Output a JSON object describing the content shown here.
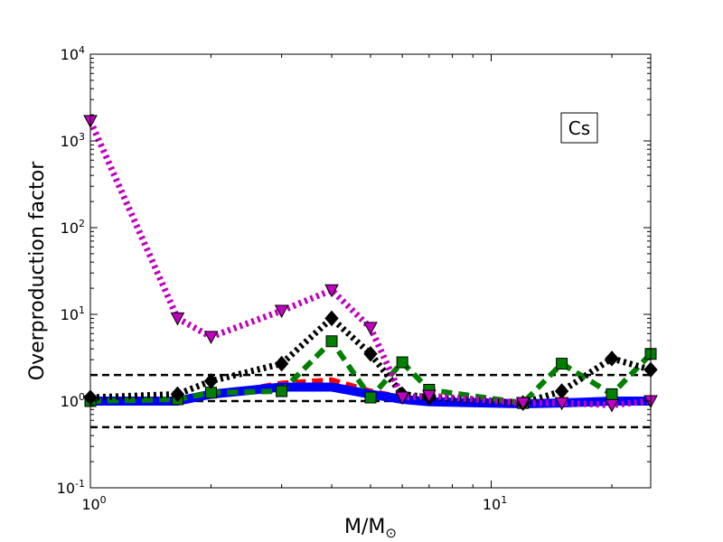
{
  "chart_data": {
    "type": "line",
    "element": "Cs",
    "xlabel": "M/M",
    "xlabel_symbol": "⊙",
    "ylabel": "Overproduction factor",
    "x_scale": "log",
    "y_scale": "log",
    "xlim": [
      1,
      25
    ],
    "ylim": [
      0.1,
      10000
    ],
    "x_ticks": [
      {
        "value": 1,
        "base": "10",
        "exp": "0"
      },
      {
        "value": 10,
        "base": "10",
        "exp": "1"
      }
    ],
    "y_ticks": [
      {
        "value": 0.1,
        "base": "10",
        "exp": "-1"
      },
      {
        "value": 1,
        "base": "10",
        "exp": "0"
      },
      {
        "value": 10,
        "base": "10",
        "exp": "1"
      },
      {
        "value": 100,
        "base": "10",
        "exp": "2"
      },
      {
        "value": 1000,
        "base": "10",
        "exp": "3"
      },
      {
        "value": 10000,
        "base": "10",
        "exp": "4"
      }
    ],
    "reference_lines": [
      0.5,
      1,
      2
    ],
    "series": [
      {
        "color": "#ff0000",
        "line": "dashed",
        "marker": "none",
        "x": [
          1,
          1.65,
          2,
          3,
          4,
          5,
          6,
          7,
          12,
          15,
          20,
          25
        ],
        "y": [
          1.0,
          1.0,
          1.15,
          1.6,
          1.75,
          1.3,
          1.1,
          1.0,
          0.95,
          0.97,
          1.0,
          1.0
        ]
      },
      {
        "color": "#0000ff",
        "line": "solid",
        "marker": "none",
        "x": [
          1,
          1.65,
          2,
          3,
          4,
          5,
          6,
          7,
          12,
          15,
          20,
          25
        ],
        "y": [
          1.0,
          1.0,
          1.2,
          1.45,
          1.45,
          1.2,
          1.05,
          0.98,
          0.93,
          0.95,
          1.0,
          1.0
        ]
      },
      {
        "color": "#008000",
        "line": "dashed",
        "marker": "square",
        "x": [
          1,
          1.65,
          2,
          3,
          4,
          5,
          6,
          7,
          12,
          15,
          20,
          25
        ],
        "y": [
          1.0,
          1.05,
          1.25,
          1.3,
          4.9,
          1.1,
          2.8,
          1.35,
          0.95,
          2.7,
          1.2,
          3.5
        ]
      },
      {
        "color": "#000000",
        "line": "dotted",
        "marker": "diamond",
        "x": [
          1,
          1.65,
          2,
          3,
          4,
          5,
          6,
          7,
          12,
          15,
          20,
          25
        ],
        "y": [
          1.1,
          1.2,
          1.7,
          2.7,
          9.0,
          3.5,
          1.2,
          1.1,
          0.95,
          1.3,
          3.1,
          2.3
        ]
      },
      {
        "color": "#bf00bf",
        "line": "dotted",
        "marker": "triangle-down",
        "x": [
          1,
          1.65,
          2,
          3,
          4,
          5,
          6,
          7,
          12,
          15,
          20,
          25
        ],
        "y": [
          1700,
          9.0,
          5.5,
          11.0,
          19.0,
          7.0,
          1.1,
          1.15,
          0.95,
          0.95,
          0.9,
          1.0
        ]
      }
    ]
  }
}
